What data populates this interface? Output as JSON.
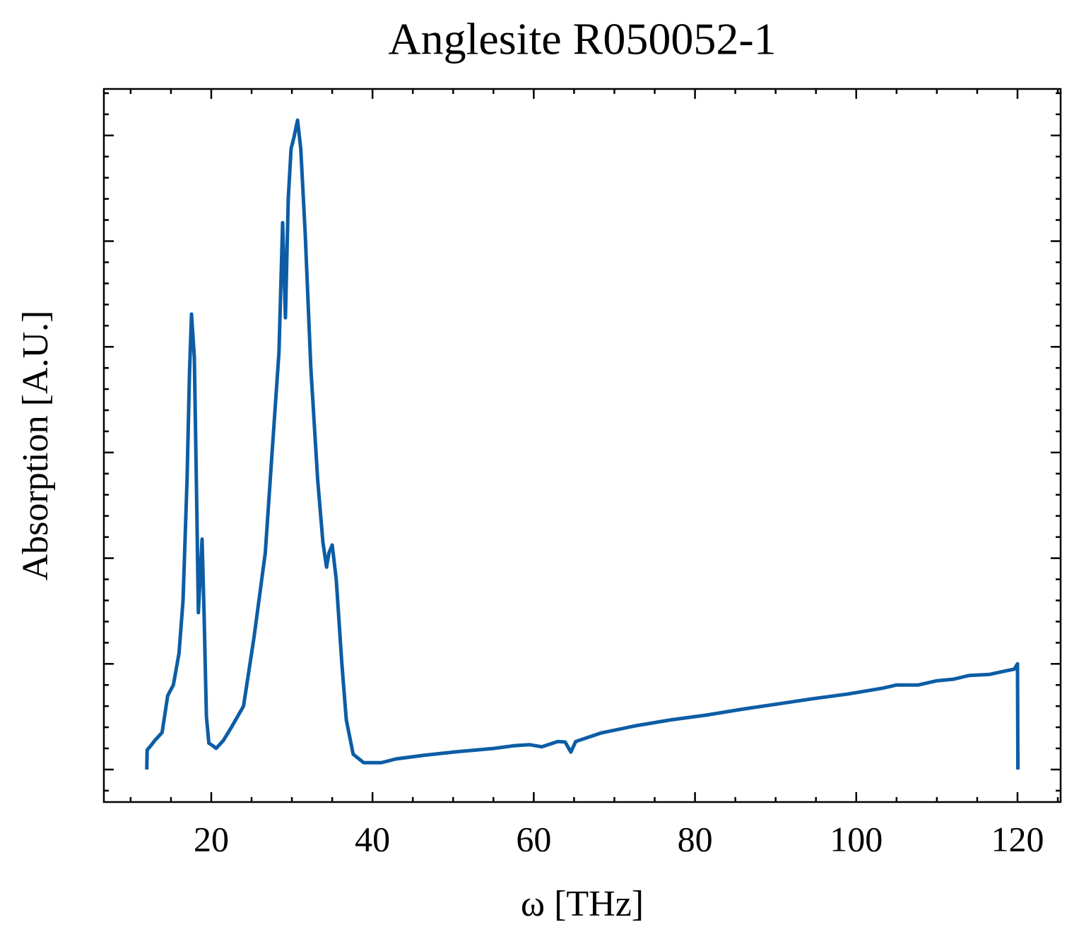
{
  "chart_data": {
    "type": "line",
    "title": "Anglesite R050052-1",
    "x_label": "ω [THz]",
    "y_label": "Absorption [A.U.]",
    "xlim": [
      6.68,
      125.35
    ],
    "ylim": [
      -0.0615,
      1.288
    ],
    "xticks": [
      20,
      40,
      60,
      80,
      100,
      120
    ],
    "xticks_minor": [
      10,
      15,
      25,
      30,
      35,
      45,
      50,
      55,
      65,
      70,
      75,
      85,
      90,
      95,
      105,
      110,
      115,
      125
    ],
    "yticks": [
      0,
      0.2,
      0.4,
      0.6,
      0.8,
      1,
      1.2
    ],
    "yticks_minor": [
      -0.04,
      0.04,
      0.08,
      0.12,
      0.16,
      0.24,
      0.28,
      0.32,
      0.36,
      0.44,
      0.48,
      0.52,
      0.56,
      0.64,
      0.68,
      0.72,
      0.76,
      0.84,
      0.88,
      0.92,
      0.96,
      1.04,
      1.08,
      1.12,
      1.16,
      1.24,
      1.28
    ],
    "ytick_labels_shown": false,
    "series": [
      {
        "name": "Anglesite R050052-1",
        "color": "#0c5da5",
        "x": [
          12.0,
          12.05,
          12.5,
          13.0,
          13.9,
          14.6,
          15.3,
          16.0,
          16.5,
          17.0,
          17.3,
          17.55,
          17.9,
          18.2,
          18.4,
          18.86,
          19.1,
          19.4,
          19.7,
          20.2,
          20.6,
          21.5,
          22.5,
          24.0,
          25.3,
          26.7,
          27.5,
          28.4,
          28.85,
          29.2,
          29.55,
          29.9,
          30.25,
          30.7,
          31.1,
          31.65,
          32.35,
          33.2,
          33.85,
          34.3,
          34.6,
          35.0,
          35.5,
          36.2,
          36.75,
          37.6,
          38.9,
          41.1,
          42.9,
          46.4,
          50.0,
          55.1,
          57.5,
          59.5,
          61.0,
          63.0,
          63.9,
          64.6,
          65.2,
          68.3,
          72.7,
          77.0,
          81.4,
          85.8,
          90.2,
          94.6,
          99.0,
          103.3,
          105.0,
          107.7,
          110.0,
          112.1,
          114.0,
          116.5,
          118.0,
          119.6,
          120.0,
          120.05
        ],
        "values": [
          0,
          0.037,
          0.045,
          0.055,
          0.07,
          0.14,
          0.16,
          0.22,
          0.32,
          0.55,
          0.75,
          0.862,
          0.78,
          0.5,
          0.297,
          0.436,
          0.3,
          0.1,
          0.05,
          0.045,
          0.04,
          0.055,
          0.08,
          0.12,
          0.25,
          0.41,
          0.59,
          0.79,
          1.035,
          0.855,
          1.08,
          1.175,
          1.196,
          1.229,
          1.175,
          1.015,
          0.76,
          0.548,
          0.43,
          0.383,
          0.41,
          0.425,
          0.36,
          0.2,
          0.094,
          0.029,
          0.013,
          0.013,
          0.02,
          0.027,
          0.033,
          0.04,
          0.045,
          0.047,
          0.043,
          0.053,
          0.052,
          0.033,
          0.053,
          0.069,
          0.083,
          0.094,
          0.103,
          0.114,
          0.124,
          0.134,
          0.143,
          0.154,
          0.16,
          0.16,
          0.168,
          0.171,
          0.178,
          0.18,
          0.185,
          0.19,
          0.2,
          0
        ]
      }
    ]
  }
}
